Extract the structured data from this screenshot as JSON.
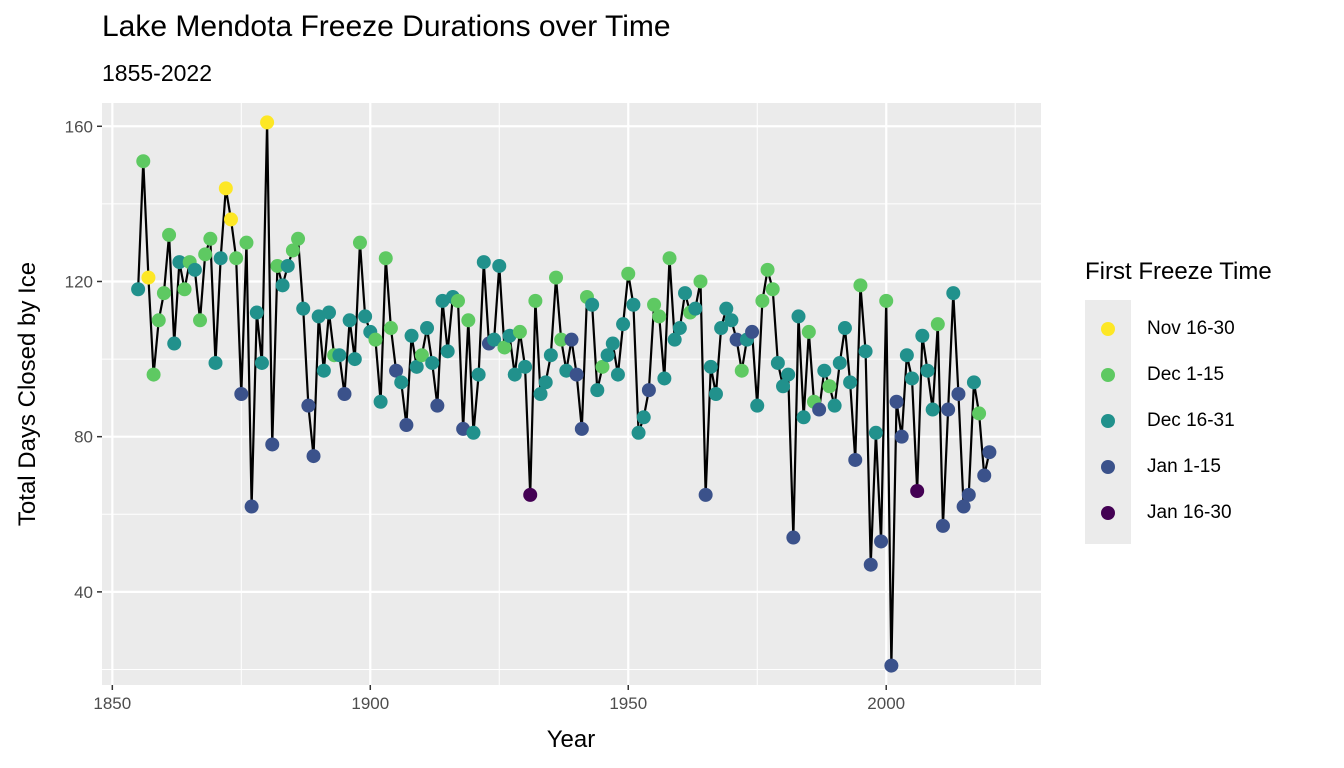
{
  "chart_data": {
    "type": "line",
    "title": "Lake Mendota Freeze Durations over Time",
    "subtitle": "1855-2022",
    "xlabel": "Year",
    "ylabel": "Total Days Closed by Ice",
    "xlim": [
      1848,
      2030
    ],
    "ylim": [
      16,
      166
    ],
    "x_ticks": [
      1850,
      1900,
      1950,
      2000
    ],
    "y_ticks": [
      40,
      80,
      120,
      160
    ],
    "grid": true,
    "legend": {
      "title": "First Freeze Time",
      "placement": "right",
      "categories": [
        "Nov 16-30",
        "Dec 1-15",
        "Dec 16-31",
        "Jan 1-15",
        "Jan 16-30"
      ],
      "colors": [
        "#FDE725",
        "#5EC962",
        "#21918C",
        "#3B528B",
        "#440154"
      ]
    },
    "line_color": "#000000",
    "panel_background": "#ebebeb",
    "points": [
      [
        1855,
        118,
        2
      ],
      [
        1856,
        151,
        1
      ],
      [
        1857,
        121,
        0
      ],
      [
        1858,
        96,
        1
      ],
      [
        1859,
        110,
        1
      ],
      [
        1860,
        117,
        1
      ],
      [
        1861,
        132,
        1
      ],
      [
        1862,
        104,
        2
      ],
      [
        1863,
        125,
        2
      ],
      [
        1864,
        118,
        1
      ],
      [
        1865,
        125,
        1
      ],
      [
        1866,
        123,
        2
      ],
      [
        1867,
        110,
        1
      ],
      [
        1868,
        127,
        1
      ],
      [
        1869,
        131,
        1
      ],
      [
        1870,
        99,
        2
      ],
      [
        1871,
        126,
        2
      ],
      [
        1872,
        144,
        0
      ],
      [
        1873,
        136,
        0
      ],
      [
        1874,
        126,
        1
      ],
      [
        1875,
        91,
        3
      ],
      [
        1876,
        130,
        1
      ],
      [
        1877,
        62,
        3
      ],
      [
        1878,
        112,
        2
      ],
      [
        1879,
        99,
        2
      ],
      [
        1880,
        161,
        0
      ],
      [
        1881,
        78,
        3
      ],
      [
        1882,
        124,
        1
      ],
      [
        1883,
        119,
        2
      ],
      [
        1884,
        124,
        2
      ],
      [
        1885,
        128,
        1
      ],
      [
        1886,
        131,
        1
      ],
      [
        1887,
        113,
        2
      ],
      [
        1888,
        88,
        3
      ],
      [
        1889,
        75,
        3
      ],
      [
        1890,
        111,
        2
      ],
      [
        1891,
        97,
        2
      ],
      [
        1892,
        112,
        2
      ],
      [
        1893,
        101,
        1
      ],
      [
        1894,
        101,
        2
      ],
      [
        1895,
        91,
        3
      ],
      [
        1896,
        110,
        2
      ],
      [
        1897,
        100,
        2
      ],
      [
        1898,
        130,
        1
      ],
      [
        1899,
        111,
        2
      ],
      [
        1900,
        107,
        2
      ],
      [
        1901,
        105,
        1
      ],
      [
        1902,
        89,
        2
      ],
      [
        1903,
        126,
        1
      ],
      [
        1904,
        108,
        1
      ],
      [
        1905,
        97,
        3
      ],
      [
        1906,
        94,
        2
      ],
      [
        1907,
        83,
        3
      ],
      [
        1908,
        106,
        2
      ],
      [
        1909,
        98,
        2
      ],
      [
        1910,
        101,
        1
      ],
      [
        1911,
        108,
        2
      ],
      [
        1912,
        99,
        2
      ],
      [
        1913,
        88,
        3
      ],
      [
        1914,
        115,
        2
      ],
      [
        1915,
        102,
        2
      ],
      [
        1916,
        116,
        2
      ],
      [
        1917,
        115,
        1
      ],
      [
        1918,
        82,
        3
      ],
      [
        1919,
        110,
        1
      ],
      [
        1920,
        81,
        2
      ],
      [
        1921,
        96,
        2
      ],
      [
        1922,
        125,
        2
      ],
      [
        1923,
        104,
        3
      ],
      [
        1924,
        105,
        2
      ],
      [
        1925,
        124,
        2
      ],
      [
        1926,
        103,
        1
      ],
      [
        1927,
        106,
        2
      ],
      [
        1928,
        96,
        2
      ],
      [
        1929,
        107,
        1
      ],
      [
        1930,
        98,
        2
      ],
      [
        1931,
        65,
        4
      ],
      [
        1932,
        115,
        1
      ],
      [
        1933,
        91,
        2
      ],
      [
        1934,
        94,
        2
      ],
      [
        1935,
        101,
        2
      ],
      [
        1936,
        121,
        1
      ],
      [
        1937,
        105,
        1
      ],
      [
        1938,
        97,
        2
      ],
      [
        1939,
        105,
        3
      ],
      [
        1940,
        96,
        3
      ],
      [
        1941,
        82,
        3
      ],
      [
        1942,
        116,
        1
      ],
      [
        1943,
        114,
        2
      ],
      [
        1944,
        92,
        2
      ],
      [
        1945,
        98,
        1
      ],
      [
        1946,
        101,
        2
      ],
      [
        1947,
        104,
        2
      ],
      [
        1948,
        96,
        2
      ],
      [
        1949,
        109,
        2
      ],
      [
        1950,
        122,
        1
      ],
      [
        1951,
        114,
        2
      ],
      [
        1952,
        81,
        2
      ],
      [
        1953,
        85,
        2
      ],
      [
        1954,
        92,
        3
      ],
      [
        1955,
        114,
        1
      ],
      [
        1956,
        111,
        1
      ],
      [
        1957,
        95,
        2
      ],
      [
        1958,
        126,
        1
      ],
      [
        1959,
        105,
        2
      ],
      [
        1960,
        108,
        2
      ],
      [
        1961,
        117,
        2
      ],
      [
        1962,
        112,
        1
      ],
      [
        1963,
        113,
        2
      ],
      [
        1964,
        120,
        1
      ],
      [
        1965,
        65,
        3
      ],
      [
        1966,
        98,
        2
      ],
      [
        1967,
        91,
        2
      ],
      [
        1968,
        108,
        2
      ],
      [
        1969,
        113,
        2
      ],
      [
        1970,
        110,
        2
      ],
      [
        1971,
        105,
        3
      ],
      [
        1972,
        97,
        1
      ],
      [
        1973,
        105,
        2
      ],
      [
        1974,
        107,
        3
      ],
      [
        1975,
        88,
        2
      ],
      [
        1976,
        115,
        1
      ],
      [
        1977,
        123,
        1
      ],
      [
        1978,
        118,
        1
      ],
      [
        1979,
        99,
        2
      ],
      [
        1980,
        93,
        2
      ],
      [
        1981,
        96,
        2
      ],
      [
        1982,
        54,
        3
      ],
      [
        1983,
        111,
        2
      ],
      [
        1984,
        85,
        2
      ],
      [
        1985,
        107,
        1
      ],
      [
        1986,
        89,
        1
      ],
      [
        1987,
        87,
        3
      ],
      [
        1988,
        97,
        2
      ],
      [
        1989,
        93,
        1
      ],
      [
        1990,
        88,
        2
      ],
      [
        1991,
        99,
        2
      ],
      [
        1992,
        108,
        2
      ],
      [
        1993,
        94,
        2
      ],
      [
        1994,
        74,
        3
      ],
      [
        1995,
        119,
        1
      ],
      [
        1996,
        102,
        2
      ],
      [
        1997,
        47,
        3
      ],
      [
        1998,
        81,
        2
      ],
      [
        1999,
        53,
        3
      ],
      [
        2000,
        115,
        1
      ],
      [
        2001,
        21,
        3
      ],
      [
        2002,
        89,
        3
      ],
      [
        2003,
        80,
        3
      ],
      [
        2004,
        101,
        2
      ],
      [
        2005,
        95,
        2
      ],
      [
        2006,
        66,
        4
      ],
      [
        2007,
        106,
        2
      ],
      [
        2008,
        97,
        2
      ],
      [
        2009,
        87,
        2
      ],
      [
        2010,
        109,
        1
      ],
      [
        2011,
        57,
        3
      ],
      [
        2012,
        87,
        3
      ],
      [
        2013,
        117,
        2
      ],
      [
        2014,
        91,
        3
      ],
      [
        2015,
        62,
        3
      ],
      [
        2016,
        65,
        3
      ],
      [
        2017,
        94,
        2
      ],
      [
        2018,
        86,
        1
      ],
      [
        2019,
        70,
        3
      ],
      [
        2020,
        76,
        3
      ]
    ]
  }
}
